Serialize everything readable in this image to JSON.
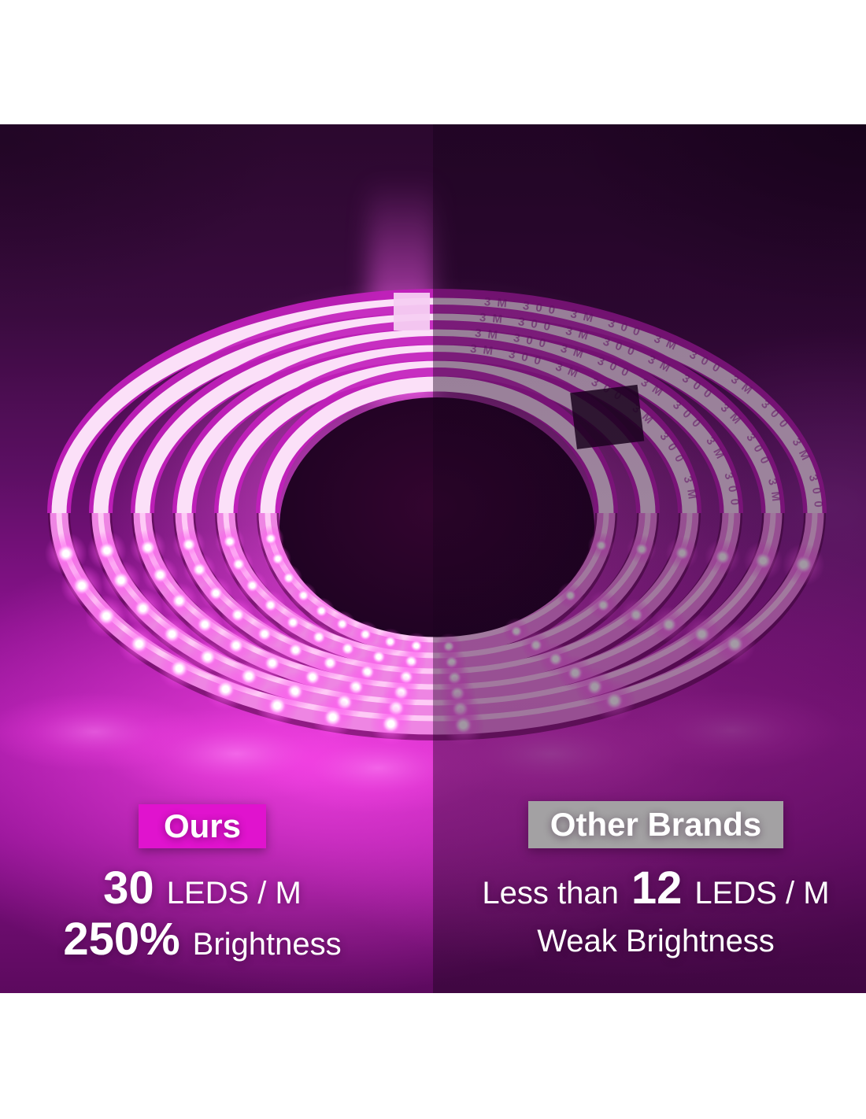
{
  "comparison": {
    "left": {
      "badge_label": "Ours",
      "badge_color": "#e013ce",
      "leds_value": "30",
      "leds_unit": "LEDS / M",
      "brightness_value": "250%",
      "brightness_label": "Brightness"
    },
    "right": {
      "badge_label": "Other Brands",
      "badge_color": "#a3a1a3",
      "leds_prefix": "Less than",
      "leds_value": "12",
      "leds_unit": "LEDS / M",
      "brightness_label": "Weak Brightness"
    },
    "strip_print": "3M 300"
  },
  "colors": {
    "glow_pink": "#f43ee2",
    "background_dark_purple": "#2b082e",
    "text": "#ffffff"
  }
}
